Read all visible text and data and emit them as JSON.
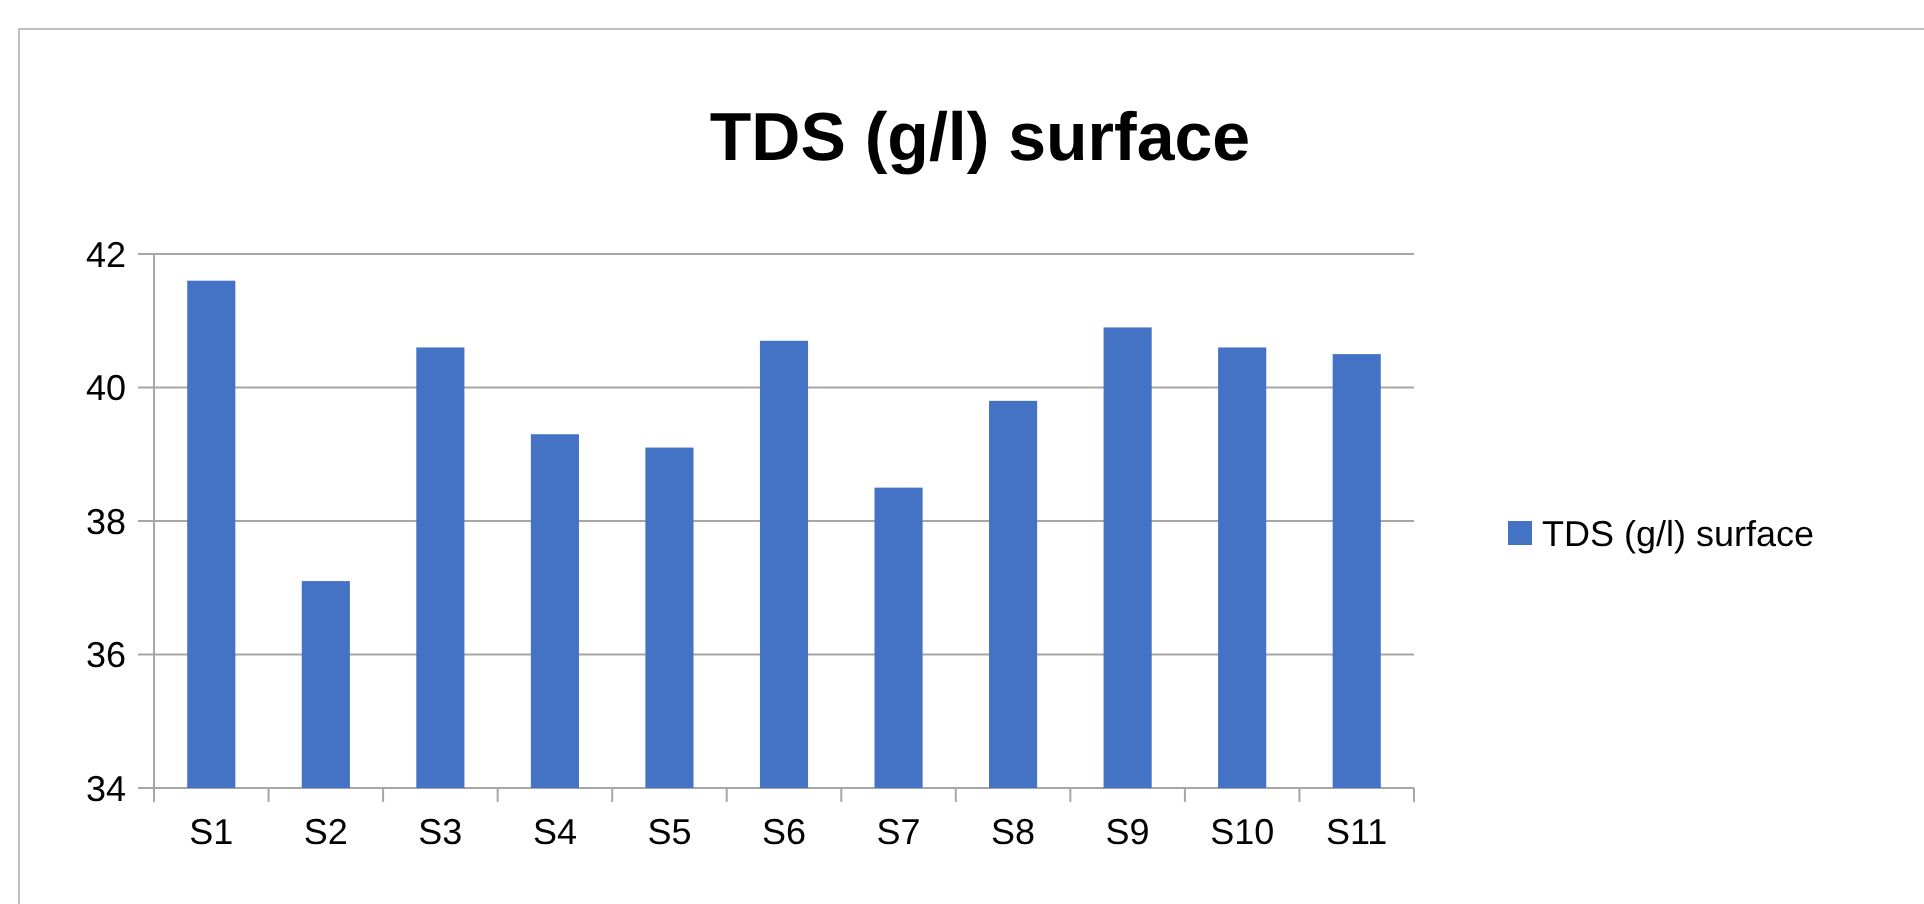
{
  "chart_data": {
    "type": "bar",
    "title": "TDS (g/l) surface",
    "categories": [
      "S1",
      "S2",
      "S3",
      "S4",
      "S5",
      "S6",
      "S7",
      "S8",
      "S9",
      "S10",
      "S11"
    ],
    "series": [
      {
        "name": "TDS (g/l) surface",
        "color": "#4472c4",
        "values": [
          41.6,
          37.1,
          40.6,
          39.3,
          39.1,
          40.7,
          38.5,
          39.8,
          40.9,
          40.6,
          40.5
        ]
      }
    ],
    "ylim": [
      34,
      42
    ],
    "yticks": [
      34,
      36,
      38,
      40,
      42
    ],
    "grid": "y",
    "legend": "right"
  }
}
